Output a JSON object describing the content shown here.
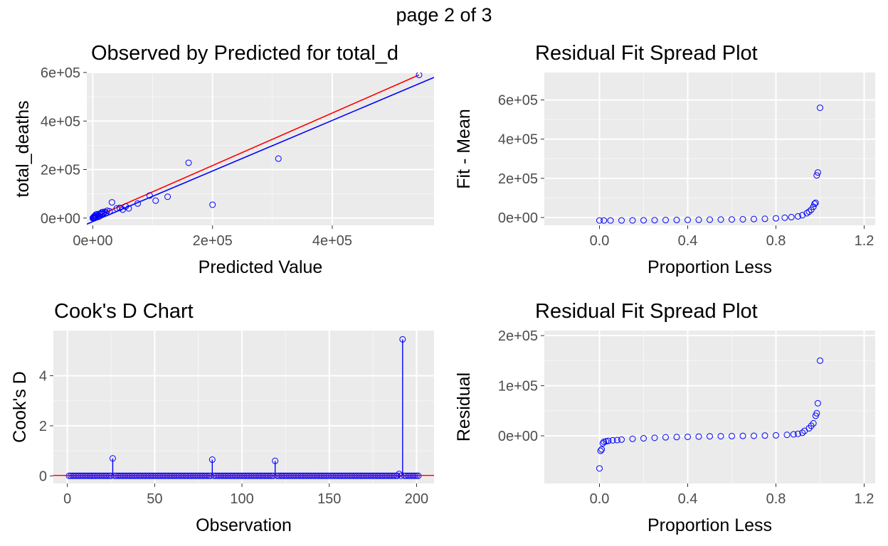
{
  "page_title": "page 2 of 3",
  "colors": {
    "panel_bg": "#ebebeb",
    "grid_major": "#ffffff",
    "point": "#0000ff",
    "fit_line": "#0000ff",
    "ref_line": "#ff0000"
  },
  "chart_data": [
    {
      "id": "obs_pred",
      "type": "scatter",
      "title": "Observed by Predicted for total_d",
      "xlabel": "Predicted Value",
      "ylabel": "total_deaths",
      "xlim": [
        -10000,
        570000
      ],
      "ylim": [
        -30000,
        600000
      ],
      "xticks": [
        {
          "v": 0,
          "label": "0e+00"
        },
        {
          "v": 200000,
          "label": "2e+05"
        },
        {
          "v": 400000,
          "label": "4e+05"
        }
      ],
      "yticks": [
        {
          "v": 0,
          "label": "0e+00"
        },
        {
          "v": 200000,
          "label": "2e+05"
        },
        {
          "v": 400000,
          "label": "4e+05"
        },
        {
          "v": 600000,
          "label": "6e+05"
        }
      ],
      "points": [
        [
          545000,
          590000
        ],
        [
          310000,
          245000
        ],
        [
          160000,
          228000
        ],
        [
          200000,
          55000
        ],
        [
          125000,
          88000
        ],
        [
          105000,
          72000
        ],
        [
          95000,
          93000
        ],
        [
          75000,
          60000
        ],
        [
          60000,
          40000
        ],
        [
          55000,
          48000
        ],
        [
          50000,
          35000
        ],
        [
          45000,
          42000
        ],
        [
          40000,
          40000
        ],
        [
          32000,
          65000
        ],
        [
          28000,
          28000
        ],
        [
          22000,
          22000
        ],
        [
          18000,
          20000
        ],
        [
          15000,
          18000
        ],
        [
          12000,
          15000
        ],
        [
          10000,
          10000
        ],
        [
          8000,
          12000
        ],
        [
          6000,
          7000
        ],
        [
          5000,
          6000
        ],
        [
          4000,
          4000
        ],
        [
          3000,
          9000
        ],
        [
          2500,
          3000
        ],
        [
          2000,
          2000
        ],
        [
          1500,
          1500
        ],
        [
          1000,
          1000
        ],
        [
          500,
          500
        ],
        [
          200,
          300
        ],
        [
          100,
          100
        ],
        [
          5000,
          14000
        ],
        [
          7000,
          16000
        ],
        [
          9000,
          5000
        ],
        [
          11000,
          8000
        ],
        [
          13000,
          20000
        ],
        [
          16000,
          25000
        ],
        [
          20000,
          26000
        ],
        [
          24000,
          30000
        ],
        [
          3000,
          1000
        ],
        [
          1000,
          3000
        ],
        [
          0,
          0
        ],
        [
          300,
          800
        ],
        [
          800,
          200
        ]
      ],
      "lines": [
        {
          "name": "fit",
          "color": "#0000ff",
          "points": [
            [
              -10000,
              -25000
            ],
            [
              570000,
              580000
            ]
          ]
        },
        {
          "name": "identity",
          "color": "#ff0000",
          "points": [
            [
              0,
              0
            ],
            [
              545000,
              590000
            ]
          ]
        }
      ]
    },
    {
      "id": "rfs_fit",
      "type": "scatter",
      "title": "Residual Fit Spread Plot",
      "xlabel": "Proportion Less",
      "ylabel": "Fit - Mean",
      "xlim": [
        -0.25,
        1.25
      ],
      "ylim": [
        -40000,
        740000
      ],
      "xticks": [
        {
          "v": 0.0,
          "label": "0.0"
        },
        {
          "v": 0.4,
          "label": "0.4"
        },
        {
          "v": 0.8,
          "label": "0.8"
        },
        {
          "v": 1.2,
          "label": "1.2"
        }
      ],
      "yticks": [
        {
          "v": 0,
          "label": "0e+00"
        },
        {
          "v": 200000,
          "label": "2e+05"
        },
        {
          "v": 400000,
          "label": "4e+05"
        },
        {
          "v": 600000,
          "label": "6e+05"
        }
      ],
      "points": [
        [
          0.0,
          -15000
        ],
        [
          0.02,
          -15000
        ],
        [
          0.05,
          -15000
        ],
        [
          0.1,
          -14800
        ],
        [
          0.15,
          -14500
        ],
        [
          0.2,
          -14000
        ],
        [
          0.25,
          -13500
        ],
        [
          0.3,
          -13000
        ],
        [
          0.35,
          -12500
        ],
        [
          0.4,
          -12000
        ],
        [
          0.45,
          -11500
        ],
        [
          0.5,
          -11000
        ],
        [
          0.55,
          -10500
        ],
        [
          0.6,
          -10000
        ],
        [
          0.65,
          -9000
        ],
        [
          0.7,
          -8000
        ],
        [
          0.75,
          -6500
        ],
        [
          0.8,
          -4000
        ],
        [
          0.84,
          -1000
        ],
        [
          0.87,
          2000
        ],
        [
          0.9,
          6000
        ],
        [
          0.92,
          12000
        ],
        [
          0.94,
          22000
        ],
        [
          0.95,
          30000
        ],
        [
          0.96,
          40000
        ],
        [
          0.97,
          55000
        ],
        [
          0.975,
          70000
        ],
        [
          0.98,
          75000
        ],
        [
          0.985,
          215000
        ],
        [
          0.99,
          230000
        ],
        [
          1.0,
          560000
        ]
      ]
    },
    {
      "id": "cooks_d",
      "type": "line",
      "title": "Cook's D Chart",
      "xlabel": "Observation",
      "ylabel": "Cook's D",
      "xlim": [
        -8,
        210
      ],
      "ylim": [
        -0.3,
        5.8
      ],
      "xticks": [
        {
          "v": 0,
          "label": "0"
        },
        {
          "v": 50,
          "label": "50"
        },
        {
          "v": 100,
          "label": "100"
        },
        {
          "v": 150,
          "label": "150"
        },
        {
          "v": 200,
          "label": "200"
        }
      ],
      "yticks": [
        {
          "v": 0,
          "label": "0"
        },
        {
          "v": 2,
          "label": "2"
        },
        {
          "v": 4,
          "label": "4"
        }
      ],
      "n": 201,
      "spikes": [
        [
          26,
          0.7
        ],
        [
          83,
          0.65
        ],
        [
          119,
          0.6
        ],
        [
          190,
          0.08
        ],
        [
          192,
          5.45
        ]
      ],
      "reference": 0.02
    },
    {
      "id": "rfs_resid",
      "type": "scatter",
      "title": "Residual Fit Spread Plot",
      "xlabel": "Proportion Less",
      "ylabel": "Residual",
      "xlim": [
        -0.25,
        1.25
      ],
      "ylim": [
        -95000,
        210000
      ],
      "xticks": [
        {
          "v": 0.0,
          "label": "0.0"
        },
        {
          "v": 0.4,
          "label": "0.4"
        },
        {
          "v": 0.8,
          "label": "0.8"
        },
        {
          "v": 1.2,
          "label": "1.2"
        }
      ],
      "yticks": [
        {
          "v": 0,
          "label": "0e+00"
        },
        {
          "v": 100000,
          "label": "1e+05"
        },
        {
          "v": 200000,
          "label": "2e+05"
        }
      ],
      "points": [
        [
          0.0,
          -65000
        ],
        [
          0.005,
          -30000
        ],
        [
          0.01,
          -27000
        ],
        [
          0.015,
          -15000
        ],
        [
          0.02,
          -12000
        ],
        [
          0.03,
          -11000
        ],
        [
          0.04,
          -10000
        ],
        [
          0.06,
          -9000
        ],
        [
          0.08,
          -8500
        ],
        [
          0.1,
          -7500
        ],
        [
          0.15,
          -6000
        ],
        [
          0.2,
          -5000
        ],
        [
          0.25,
          -4000
        ],
        [
          0.3,
          -3000
        ],
        [
          0.35,
          -2500
        ],
        [
          0.4,
          -2000
        ],
        [
          0.45,
          -1500
        ],
        [
          0.5,
          -1000
        ],
        [
          0.55,
          -800
        ],
        [
          0.6,
          -500
        ],
        [
          0.65,
          -200
        ],
        [
          0.7,
          0
        ],
        [
          0.75,
          500
        ],
        [
          0.8,
          1000
        ],
        [
          0.85,
          2000
        ],
        [
          0.88,
          3000
        ],
        [
          0.9,
          4000
        ],
        [
          0.92,
          6000
        ],
        [
          0.93,
          10000
        ],
        [
          0.95,
          15000
        ],
        [
          0.96,
          20000
        ],
        [
          0.97,
          25000
        ],
        [
          0.98,
          40000
        ],
        [
          0.985,
          45000
        ],
        [
          0.99,
          65000
        ],
        [
          1.0,
          150000
        ]
      ]
    }
  ]
}
